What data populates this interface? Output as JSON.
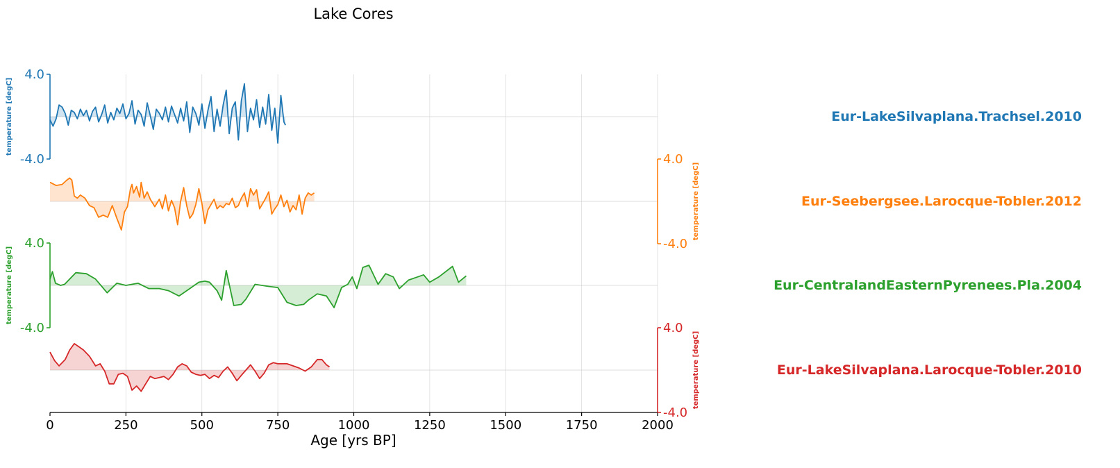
{
  "chart_data": {
    "type": "line",
    "title": "Lake Cores",
    "xlabel": "Age [yrs BP]",
    "xlim": [
      0,
      2000
    ],
    "xticks": [
      0,
      250,
      500,
      750,
      1000,
      1250,
      1500,
      1750,
      2000
    ],
    "xtick_labels": [
      "0",
      "250",
      "500",
      "750",
      "1000",
      "1250",
      "1500",
      "1750",
      "2000"
    ],
    "grid": true,
    "series": [
      {
        "name": "Eur-LakeSilvaplana.Trachsel.2010",
        "color": "#1f77b4",
        "ylabel": "temperature [degC]",
        "yaxis_side": "left",
        "ylim": [
          -4.0,
          4.0
        ],
        "ytick_labels": [
          "4.0",
          "-4.0"
        ],
        "x": [
          0,
          10,
          20,
          30,
          40,
          50,
          60,
          70,
          80,
          90,
          100,
          110,
          120,
          130,
          140,
          150,
          160,
          170,
          180,
          190,
          200,
          210,
          220,
          230,
          240,
          250,
          260,
          270,
          280,
          290,
          300,
          310,
          320,
          330,
          340,
          350,
          360,
          370,
          380,
          390,
          400,
          410,
          420,
          430,
          440,
          450,
          460,
          470,
          480,
          490,
          500,
          510,
          520,
          530,
          540,
          550,
          560,
          570,
          580,
          590,
          600,
          610,
          620,
          630,
          640,
          650,
          660,
          670,
          680,
          690,
          700,
          710,
          720,
          730,
          740,
          750,
          760,
          770,
          775
        ],
        "values": [
          -0.3,
          -0.9,
          -0.2,
          1.1,
          0.9,
          0.3,
          -0.8,
          0.6,
          0.4,
          -0.2,
          0.7,
          0.1,
          0.6,
          -0.4,
          0.5,
          0.9,
          -0.5,
          0.2,
          1.1,
          -0.6,
          0.4,
          -0.3,
          0.8,
          0.3,
          1.2,
          -0.2,
          0.3,
          1.5,
          -0.7,
          0.6,
          0.2,
          -0.9,
          1.3,
          0.1,
          -1.2,
          0.7,
          0.3,
          -0.3,
          0.9,
          -0.5,
          1.0,
          0.2,
          -0.6,
          0.8,
          -0.4,
          1.4,
          -1.5,
          0.9,
          0.3,
          -0.8,
          1.2,
          -1.1,
          0.6,
          1.9,
          -1.4,
          0.7,
          -0.9,
          1.1,
          2.5,
          -1.6,
          0.8,
          1.4,
          -2.2,
          1.5,
          3.1,
          -1.4,
          0.8,
          -0.3,
          1.6,
          -1.0,
          0.9,
          -0.7,
          2.1,
          -1.3,
          0.8,
          -2.5,
          2.0,
          -0.5,
          -0.8
        ]
      },
      {
        "name": "Eur-Seebergsee.Larocque-Tobler.2012",
        "color": "#ff7f0e",
        "ylabel": "temperature [degC]",
        "yaxis_side": "right",
        "ylim": [
          -4.0,
          4.0
        ],
        "ytick_labels": [
          "4.0",
          "-4.0"
        ],
        "x": [
          0,
          20,
          40,
          55,
          65,
          72,
          80,
          90,
          100,
          115,
          130,
          145,
          160,
          175,
          190,
          205,
          220,
          235,
          245,
          255,
          265,
          270,
          275,
          285,
          295,
          300,
          310,
          320,
          330,
          345,
          360,
          370,
          380,
          390,
          400,
          410,
          420,
          430,
          440,
          450,
          460,
          470,
          480,
          490,
          500,
          510,
          520,
          530,
          540,
          550,
          560,
          570,
          580,
          590,
          600,
          610,
          620,
          630,
          640,
          650,
          660,
          670,
          680,
          690,
          700,
          710,
          720,
          730,
          740,
          750,
          760,
          770,
          780,
          790,
          800,
          810,
          820,
          830,
          840,
          850,
          860,
          870
        ],
        "values": [
          1.8,
          1.5,
          1.6,
          2.0,
          2.2,
          2.0,
          0.5,
          0.3,
          0.6,
          0.3,
          -0.4,
          -0.6,
          -1.5,
          -1.3,
          -1.5,
          -0.4,
          -1.6,
          -2.7,
          -1.0,
          -0.5,
          1.2,
          1.6,
          0.8,
          1.4,
          0.4,
          1.8,
          0.3,
          0.9,
          0.2,
          -0.5,
          0.2,
          -0.7,
          0.6,
          -0.9,
          0.1,
          -0.6,
          -2.2,
          0.0,
          1.3,
          -0.4,
          -1.6,
          -1.2,
          -0.3,
          1.2,
          -0.2,
          -2.1,
          -0.8,
          -0.3,
          0.2,
          -0.7,
          -0.4,
          -0.6,
          -0.2,
          -0.3,
          0.3,
          -0.6,
          -0.4,
          0.3,
          0.8,
          -0.5,
          1.2,
          0.6,
          1.1,
          -0.7,
          -0.2,
          0.3,
          0.9,
          -1.2,
          -0.7,
          -0.3,
          0.6,
          -0.5,
          0.1,
          -1.0,
          -0.4,
          -0.8,
          0.6,
          -1.2,
          0.3,
          0.8,
          0.6,
          0.8
        ]
      },
      {
        "name": "Eur-CentralandEasternPyrenees.Pla.2004",
        "color": "#2ca02c",
        "ylabel": "temperature [degC]",
        "yaxis_side": "left",
        "ylim": [
          -4.0,
          4.0
        ],
        "ytick_labels": [
          "4.0",
          "-4.0"
        ],
        "x": [
          0,
          8,
          18,
          35,
          48,
          85,
          120,
          150,
          188,
          220,
          250,
          290,
          325,
          360,
          390,
          425,
          460,
          490,
          510,
          525,
          550,
          565,
          580,
          605,
          630,
          645,
          675,
          720,
          750,
          780,
          810,
          835,
          850,
          880,
          910,
          935,
          960,
          980,
          995,
          1010,
          1030,
          1050,
          1080,
          1105,
          1130,
          1150,
          1180,
          1210,
          1230,
          1250,
          1280,
          1325,
          1345,
          1370
        ],
        "values": [
          0.6,
          1.3,
          0.2,
          0.0,
          0.1,
          1.2,
          1.1,
          0.6,
          -0.7,
          0.2,
          0.0,
          0.2,
          -0.3,
          -0.3,
          -0.5,
          -1.0,
          -0.3,
          0.3,
          0.4,
          0.3,
          -0.5,
          -1.4,
          1.4,
          -1.9,
          -1.8,
          -1.3,
          0.1,
          -0.1,
          -0.2,
          -1.6,
          -1.9,
          -1.8,
          -1.4,
          -0.8,
          -1.0,
          -2.1,
          -0.2,
          0.1,
          0.8,
          -0.3,
          1.7,
          1.9,
          0.1,
          1.1,
          0.8,
          -0.3,
          0.5,
          0.8,
          1.0,
          0.3,
          0.8,
          1.8,
          0.3,
          0.9
        ]
      },
      {
        "name": "Eur-LakeSilvaplana.Larocque-Tobler.2010",
        "color": "#d62728",
        "ylabel": "temperature [degC]",
        "yaxis_side": "right",
        "ylim": [
          -4.0,
          4.0
        ],
        "ytick_labels": [
          "4.0",
          "-4.0"
        ],
        "x": [
          0,
          15,
          30,
          50,
          65,
          80,
          95,
          110,
          130,
          150,
          165,
          180,
          195,
          210,
          225,
          240,
          255,
          270,
          285,
          300,
          315,
          330,
          345,
          360,
          375,
          390,
          405,
          420,
          435,
          450,
          465,
          480,
          495,
          510,
          525,
          540,
          555,
          570,
          585,
          600,
          615,
          630,
          645,
          660,
          675,
          690,
          705,
          720,
          735,
          750,
          765,
          780,
          800,
          820,
          840,
          860,
          880,
          895,
          910,
          920
        ],
        "values": [
          1.7,
          0.9,
          0.4,
          1.0,
          1.9,
          2.5,
          2.2,
          1.9,
          1.3,
          0.4,
          0.6,
          -0.1,
          -1.3,
          -1.3,
          -0.4,
          -0.3,
          -0.6,
          -1.9,
          -1.5,
          -2.0,
          -1.3,
          -0.6,
          -0.8,
          -0.7,
          -0.6,
          -0.9,
          -0.4,
          0.3,
          0.6,
          0.4,
          -0.2,
          -0.4,
          -0.5,
          -0.4,
          -0.8,
          -0.5,
          -0.7,
          -0.1,
          0.3,
          -0.3,
          -1.0,
          -0.5,
          0.0,
          0.5,
          -0.1,
          -0.8,
          -0.3,
          0.5,
          0.7,
          0.6,
          0.6,
          0.6,
          0.4,
          0.2,
          -0.1,
          0.3,
          1.0,
          1.0,
          0.5,
          0.3
        ]
      }
    ]
  }
}
